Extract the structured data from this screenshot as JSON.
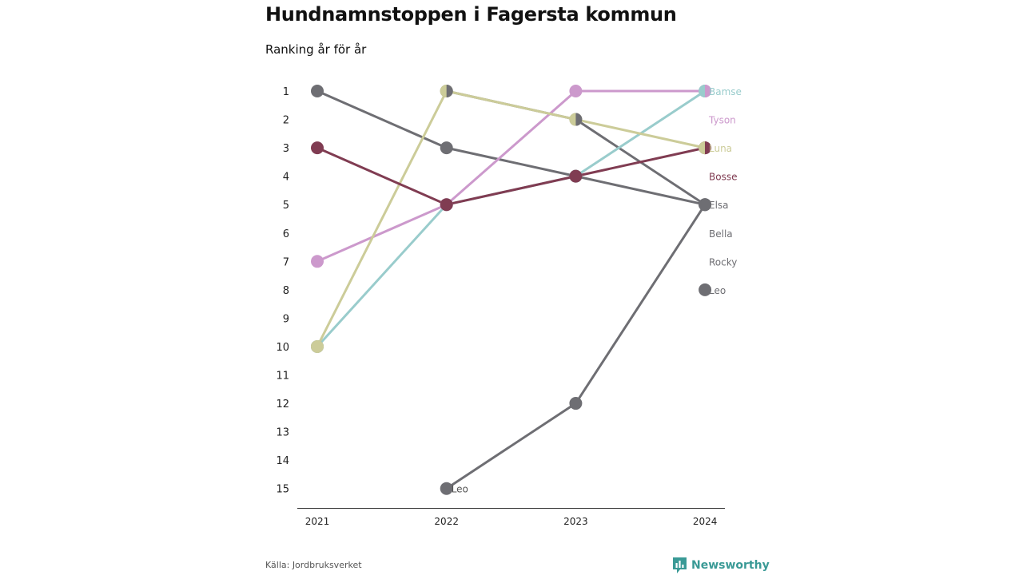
{
  "chart_data": {
    "type": "line",
    "title": "Hundnamnstoppen i Fagersta kommun",
    "subtitle": "Ranking år för år",
    "x": [
      "2021",
      "2022",
      "2023",
      "2024"
    ],
    "y_axis": {
      "reversed": true,
      "ylim": [
        1,
        15
      ],
      "ticks": [
        1,
        2,
        3,
        4,
        5,
        6,
        7,
        8,
        9,
        10,
        11,
        12,
        13,
        14,
        15
      ]
    },
    "grid": false,
    "end_labels": true,
    "series": [
      {
        "name": "Bamse",
        "color": "#99cccc",
        "values": [
          10,
          5,
          4,
          1
        ]
      },
      {
        "name": "Tyson",
        "color": "#cc99cc",
        "values": [
          7,
          5,
          1,
          1
        ]
      },
      {
        "name": "Luna",
        "color": "#cccc99",
        "values": [
          10,
          1,
          2,
          3
        ]
      },
      {
        "name": "Bosse",
        "color": "#803c52",
        "values": [
          3,
          5,
          4,
          3
        ]
      },
      {
        "name": "Elsa",
        "color": "#6e6e73",
        "values": [
          1,
          3,
          4,
          5
        ]
      },
      {
        "name": "Bella",
        "color": "#6e6e73",
        "values": [
          null,
          1,
          2,
          5
        ]
      },
      {
        "name": "Rocky",
        "color": "#6e6e73",
        "values": [
          10,
          null,
          null,
          null
        ]
      },
      {
        "name": "Leo",
        "color": "#6e6e73",
        "values": [
          null,
          15,
          12,
          5
        ]
      }
    ],
    "legend_labels": [
      {
        "name": "Bamse",
        "rank": 1,
        "color": "#99cccc"
      },
      {
        "name": "Tyson",
        "rank": 2,
        "color": "#cc99cc"
      },
      {
        "name": "Luna",
        "rank": 3,
        "color": "#cccc99"
      },
      {
        "name": "Bosse",
        "rank": 4,
        "color": "#803c52"
      },
      {
        "name": "Elsa",
        "rank": 5,
        "color": "#6e6e73"
      },
      {
        "name": "Bella",
        "rank": 6,
        "color": "#6e6e73"
      },
      {
        "name": "Rocky",
        "rank": 7,
        "color": "#6e6e73"
      },
      {
        "name": "Leo",
        "rank": 8,
        "color": "#6e6e73"
      }
    ],
    "extra_points": [
      {
        "x": "2024",
        "rank": 8,
        "color": "#6e6e73"
      }
    ],
    "annotations": [
      {
        "text": "Leo",
        "x": "2022",
        "rank": 15,
        "color": "#555555"
      }
    ],
    "split_markers": [
      {
        "x": "2022",
        "rank": 1,
        "left": "#cccc99",
        "right": "#6e6e73"
      },
      {
        "x": "2023",
        "rank": 2,
        "left": "#cccc99",
        "right": "#6e6e73"
      },
      {
        "x": "2024",
        "rank": 3,
        "left": "#cccc99",
        "right": "#803c52"
      },
      {
        "x": "2024",
        "rank": 1,
        "left": "#99cccc",
        "right": "#cc99cc"
      }
    ]
  },
  "footer": {
    "source": "Källa: Jordbruksverket",
    "brand": "Newsworthy",
    "brand_color": "#3a9a96"
  }
}
